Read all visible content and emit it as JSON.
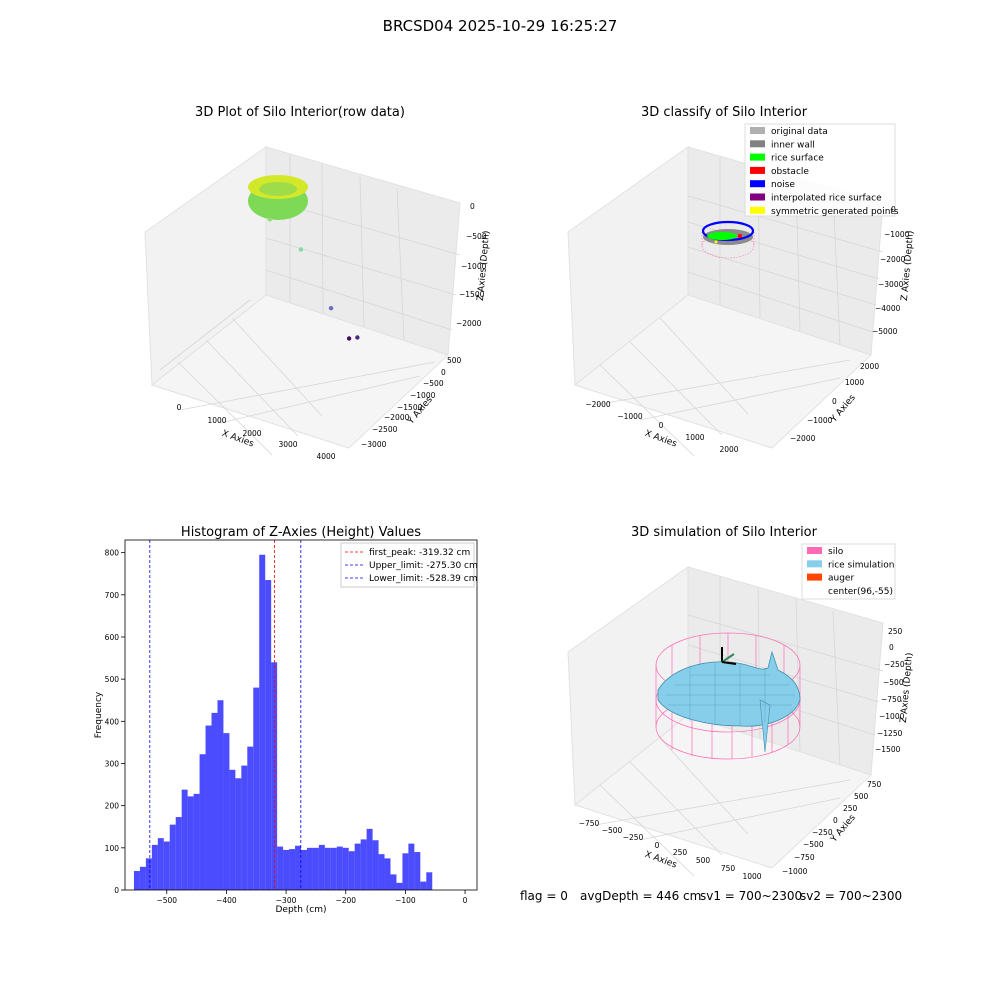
{
  "suptitle": "BRCSD04 2025-10-29 16:25:27",
  "panels": {
    "raw": {
      "title": "3D Plot of Silo Interior(row data)",
      "xlabel": "X Axies",
      "ylabel": "Y Axies",
      "zlabel": "Z Axies (Depth)",
      "x_ticks": [
        "0",
        "1000",
        "2000",
        "3000",
        "4000"
      ],
      "y_ticks": [
        "500",
        "0",
        "−500",
        "−1000",
        "−1500",
        "−2000",
        "−2500",
        "−3000"
      ],
      "z_ticks": [
        "0",
        "−500",
        "−1000",
        "−1500",
        "−2000"
      ],
      "outliers": [
        {
          "x": 180,
          "y": -400,
          "z": -150,
          "color": "#8fe07a"
        },
        {
          "x": 1900,
          "y": -300,
          "z": -520,
          "color": "#7fd9a0"
        },
        {
          "x": 3850,
          "y": 60,
          "z": -1900,
          "color": "#6a6fc0"
        },
        {
          "x": 3300,
          "y": -1700,
          "z": -2100,
          "color": "#4b2a7a"
        },
        {
          "x": 2000,
          "y": -2500,
          "z": -2200,
          "color": "#3d0f5c"
        }
      ]
    },
    "classify": {
      "title": "3D classify of Silo Interior",
      "xlabel": "X Axies",
      "ylabel": "Y Axies",
      "zlabel": "Z Axies (Depth)",
      "x_ticks": [
        "−2000",
        "−1000",
        "0",
        "1000",
        "2000"
      ],
      "y_ticks": [
        "2000",
        "1000",
        "0",
        "−1000",
        "−2000"
      ],
      "z_ticks": [
        "0",
        "−1000",
        "−2000",
        "−3000",
        "−4000",
        "−5000"
      ],
      "legend": [
        {
          "label": "original data",
          "color": "#b0b0b0"
        },
        {
          "label": "inner wall",
          "color": "#808080"
        },
        {
          "label": "rice surface",
          "color": "#00ff00"
        },
        {
          "label": "obstacle",
          "color": "#ff0000"
        },
        {
          "label": "noise",
          "color": "#0000ff"
        },
        {
          "label": "interpolated rice surface",
          "color": "#800080"
        },
        {
          "label": "symmetric generated points",
          "color": "#ffff00"
        }
      ]
    },
    "simulation": {
      "title": "3D simulation of Silo Interior",
      "xlabel": "X Axies",
      "ylabel": "Y Axies",
      "zlabel": "Z Axies (Depth)",
      "x_ticks": [
        "−750",
        "−500",
        "−250",
        "0",
        "250",
        "500",
        "750",
        "1000"
      ],
      "y_ticks": [
        "750",
        "500",
        "250",
        "0",
        "−250",
        "−500",
        "−750",
        "−1000"
      ],
      "z_ticks": [
        "250",
        "0",
        "−250",
        "−500",
        "−750",
        "−1000",
        "−1250",
        "−1500"
      ],
      "legend": [
        {
          "label": "silo",
          "color": "#ff69b4"
        },
        {
          "label": "rice simulation",
          "color": "#87ceeb"
        },
        {
          "label": "auger",
          "color": "#ff4500"
        },
        {
          "label": "center(96,-55)",
          "color": "#ffffff"
        }
      ]
    }
  },
  "footer": {
    "flag": "flag = 0",
    "avg_depth": "avgDepth = 446 cm",
    "sv1": "sv1 = 700~2300",
    "sv2": "sv2 = 700~2300"
  },
  "chart_data": {
    "type": "bar",
    "title": "Histogram of Z-Axies (Height) Values",
    "xlabel": "Depth (cm)",
    "ylabel": "Frequency",
    "xlim": [
      -570,
      20
    ],
    "ylim": [
      0,
      830
    ],
    "x_ticks": [
      -500,
      -400,
      -300,
      -200,
      -100,
      0
    ],
    "y_ticks": [
      0,
      100,
      200,
      300,
      400,
      500,
      600,
      700,
      800
    ],
    "bin_start": -555,
    "bin_width": 10,
    "values": [
      45,
      55,
      75,
      107,
      123,
      115,
      155,
      173,
      238,
      222,
      228,
      322,
      390,
      420,
      450,
      372,
      285,
      265,
      295,
      340,
      480,
      795,
      735,
      540,
      103,
      95,
      97,
      105,
      95,
      100,
      100,
      107,
      100,
      100,
      103,
      100,
      92,
      110,
      120,
      145,
      118,
      85,
      75,
      37,
      17,
      87,
      110,
      90,
      20,
      42
    ],
    "bar_color": "#0000ff",
    "vlines": [
      {
        "label": "first_peak: -319.32 cm",
        "x": -319.32,
        "color": "#ff0000"
      },
      {
        "label": "Upper_limit: -275.30 cm",
        "x": -275.3,
        "color": "#0000ff"
      },
      {
        "label": "Lower_limit: -528.39 cm",
        "x": -528.39,
        "color": "#0000ff"
      }
    ],
    "legend_position": "top-right",
    "grid": false
  }
}
